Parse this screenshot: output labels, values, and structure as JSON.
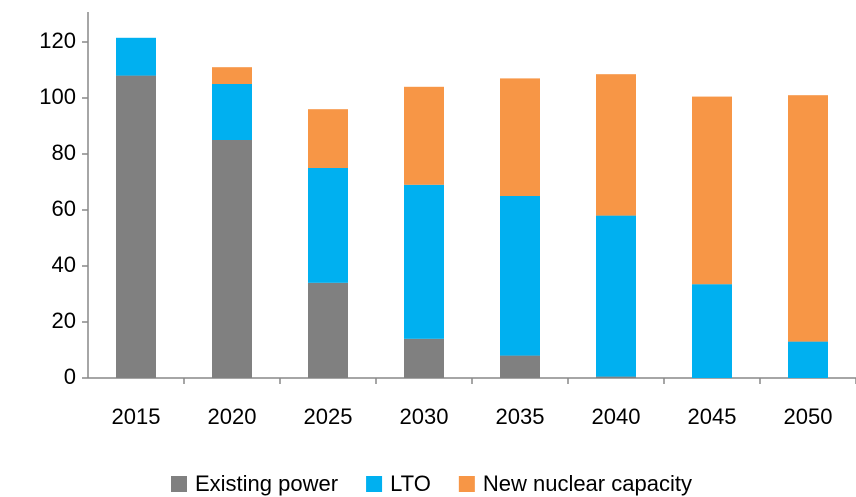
{
  "chart_data": {
    "type": "stacked_bar",
    "categories": [
      "2015",
      "2020",
      "2025",
      "2030",
      "2035",
      "2040",
      "2045",
      "2050"
    ],
    "series": [
      {
        "name": "Existing power",
        "color": "#808080",
        "values": [
          108,
          85,
          34,
          14,
          8,
          0.5,
          0,
          0
        ]
      },
      {
        "name": "LTO",
        "color": "#00b0f0",
        "values": [
          13.5,
          20,
          41,
          55,
          57,
          57.5,
          33.5,
          13
        ]
      },
      {
        "name": "New nuclear capacity",
        "color": "#f79646",
        "values": [
          0,
          6,
          21,
          35,
          42,
          50.5,
          67,
          88
        ]
      }
    ],
    "ylim": [
      0,
      120
    ],
    "yticks": [
      0,
      20,
      40,
      60,
      80,
      100,
      120
    ],
    "legend": "bottom"
  }
}
